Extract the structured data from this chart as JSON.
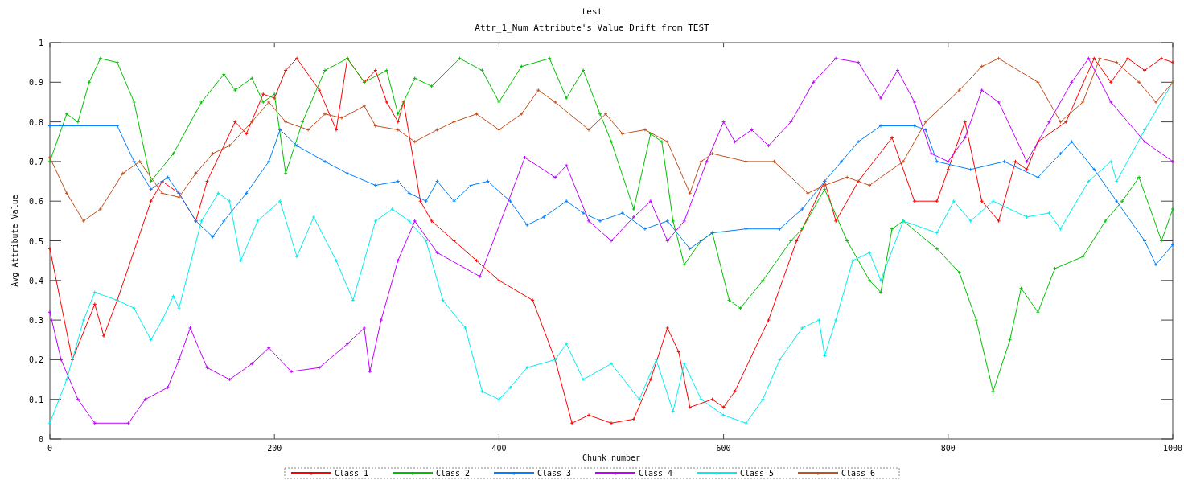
{
  "chart_data": {
    "type": "line",
    "title": "test",
    "subtitle": "Attr_1_Num Attribute's Value Drift from TEST",
    "xlabel": "Chunk number",
    "ylabel": "Avg Attribute Value",
    "xlim": [
      0,
      1000
    ],
    "xticks": [
      0,
      200,
      400,
      600,
      800,
      1000
    ],
    "ylim": [
      0,
      1
    ],
    "yticks": [
      0,
      0.1,
      0.2,
      0.3,
      0.4,
      0.5,
      0.6,
      0.7,
      0.8,
      0.9,
      1
    ],
    "grid": false,
    "legend": "bottom",
    "marker": "cross",
    "line_style": "solid",
    "series": [
      {
        "name": "Class_1",
        "color": "#ff0000",
        "x": [
          0,
          20,
          40,
          48,
          60,
          90,
          100,
          115,
          130,
          140,
          165,
          175,
          190,
          200,
          210,
          220,
          240,
          255,
          265,
          280,
          290,
          300,
          310,
          315,
          330,
          340,
          360,
          380,
          400,
          430,
          450,
          465,
          480,
          500,
          520,
          535,
          550,
          560,
          570,
          590,
          600,
          610,
          640,
          665,
          690,
          700,
          720,
          750,
          770,
          790,
          800,
          815,
          830,
          845,
          860,
          870,
          880,
          905,
          930,
          945,
          960,
          975,
          990,
          1000
        ],
        "values": [
          0.48,
          0.2,
          0.34,
          0.26,
          0.35,
          0.6,
          0.65,
          0.62,
          0.55,
          0.65,
          0.8,
          0.77,
          0.87,
          0.86,
          0.93,
          0.96,
          0.88,
          0.78,
          0.96,
          0.9,
          0.93,
          0.85,
          0.8,
          0.85,
          0.6,
          0.55,
          0.5,
          0.45,
          0.4,
          0.35,
          0.2,
          0.04,
          0.06,
          0.04,
          0.05,
          0.15,
          0.28,
          0.22,
          0.08,
          0.1,
          0.08,
          0.12,
          0.3,
          0.5,
          0.65,
          0.55,
          0.65,
          0.76,
          0.6,
          0.6,
          0.68,
          0.8,
          0.6,
          0.55,
          0.7,
          0.68,
          0.75,
          0.8,
          0.96,
          0.9,
          0.96,
          0.93,
          0.96,
          0.95
        ]
      },
      {
        "name": "Class_2",
        "color": "#00c000",
        "x": [
          0,
          15,
          25,
          35,
          45,
          60,
          75,
          90,
          110,
          135,
          155,
          165,
          180,
          190,
          200,
          210,
          225,
          245,
          265,
          280,
          300,
          310,
          325,
          340,
          365,
          385,
          400,
          420,
          445,
          460,
          475,
          490,
          500,
          520,
          535,
          545,
          555,
          565,
          580,
          590,
          605,
          615,
          635,
          660,
          670,
          690,
          710,
          730,
          740,
          750,
          760,
          790,
          810,
          825,
          840,
          855,
          865,
          880,
          895,
          920,
          940,
          955,
          970,
          990,
          1000
        ],
        "values": [
          0.7,
          0.82,
          0.8,
          0.9,
          0.96,
          0.95,
          0.85,
          0.65,
          0.72,
          0.85,
          0.92,
          0.88,
          0.91,
          0.85,
          0.87,
          0.67,
          0.8,
          0.93,
          0.96,
          0.9,
          0.93,
          0.82,
          0.91,
          0.89,
          0.96,
          0.93,
          0.85,
          0.94,
          0.96,
          0.86,
          0.93,
          0.82,
          0.75,
          0.58,
          0.77,
          0.75,
          0.55,
          0.44,
          0.5,
          0.52,
          0.35,
          0.33,
          0.4,
          0.5,
          0.53,
          0.63,
          0.5,
          0.4,
          0.37,
          0.53,
          0.55,
          0.48,
          0.42,
          0.3,
          0.12,
          0.25,
          0.38,
          0.32,
          0.43,
          0.46,
          0.55,
          0.6,
          0.66,
          0.5,
          0.58
        ]
      },
      {
        "name": "Class_3",
        "color": "#0080ff",
        "x": [
          0,
          60,
          75,
          90,
          105,
          115,
          130,
          145,
          155,
          175,
          195,
          205,
          220,
          245,
          265,
          290,
          310,
          320,
          335,
          345,
          360,
          375,
          390,
          410,
          425,
          440,
          460,
          475,
          490,
          510,
          530,
          550,
          570,
          590,
          620,
          650,
          670,
          690,
          705,
          720,
          740,
          770,
          780,
          790,
          820,
          850,
          880,
          900,
          910,
          930,
          950,
          975,
          985,
          1000
        ],
        "values": [
          0.79,
          0.79,
          0.7,
          0.63,
          0.66,
          0.62,
          0.55,
          0.51,
          0.55,
          0.62,
          0.7,
          0.78,
          0.74,
          0.7,
          0.67,
          0.64,
          0.65,
          0.62,
          0.6,
          0.65,
          0.6,
          0.64,
          0.65,
          0.6,
          0.54,
          0.56,
          0.6,
          0.57,
          0.55,
          0.57,
          0.53,
          0.55,
          0.48,
          0.52,
          0.53,
          0.53,
          0.58,
          0.65,
          0.7,
          0.75,
          0.79,
          0.79,
          0.78,
          0.7,
          0.68,
          0.7,
          0.66,
          0.72,
          0.75,
          0.68,
          0.6,
          0.5,
          0.44,
          0.49
        ]
      },
      {
        "name": "Class_4",
        "color": "#c000ff",
        "x": [
          0,
          10,
          25,
          40,
          70,
          85,
          105,
          115,
          125,
          140,
          160,
          180,
          195,
          215,
          240,
          265,
          280,
          285,
          295,
          310,
          325,
          345,
          383,
          423,
          450,
          460,
          480,
          500,
          520,
          535,
          550,
          565,
          585,
          600,
          610,
          625,
          640,
          660,
          680,
          700,
          720,
          740,
          755,
          770,
          785,
          800,
          815,
          830,
          845,
          870,
          890,
          910,
          925,
          945,
          975,
          1000
        ],
        "values": [
          0.32,
          0.2,
          0.1,
          0.04,
          0.04,
          0.1,
          0.13,
          0.2,
          0.28,
          0.18,
          0.15,
          0.19,
          0.23,
          0.17,
          0.18,
          0.24,
          0.28,
          0.17,
          0.3,
          0.45,
          0.55,
          0.47,
          0.41,
          0.71,
          0.66,
          0.69,
          0.55,
          0.5,
          0.56,
          0.6,
          0.5,
          0.55,
          0.7,
          0.8,
          0.75,
          0.78,
          0.74,
          0.8,
          0.9,
          0.96,
          0.95,
          0.86,
          0.93,
          0.85,
          0.72,
          0.7,
          0.76,
          0.88,
          0.85,
          0.7,
          0.8,
          0.9,
          0.96,
          0.85,
          0.75,
          0.7
        ]
      },
      {
        "name": "Class_5",
        "color": "#00eeee",
        "x": [
          0,
          15,
          30,
          40,
          60,
          75,
          90,
          100,
          110,
          115,
          135,
          150,
          160,
          170,
          185,
          205,
          220,
          235,
          255,
          270,
          290,
          305,
          320,
          335,
          350,
          370,
          385,
          400,
          410,
          425,
          450,
          460,
          475,
          500,
          525,
          540,
          555,
          565,
          580,
          600,
          620,
          635,
          650,
          670,
          685,
          690,
          700,
          715,
          730,
          740,
          760,
          790,
          805,
          820,
          840,
          870,
          890,
          900,
          925,
          945,
          950,
          975,
          1000
        ],
        "values": [
          0.04,
          0.15,
          0.3,
          0.37,
          0.35,
          0.33,
          0.25,
          0.3,
          0.36,
          0.33,
          0.55,
          0.62,
          0.6,
          0.45,
          0.55,
          0.6,
          0.46,
          0.56,
          0.45,
          0.35,
          0.55,
          0.58,
          0.55,
          0.5,
          0.35,
          0.28,
          0.12,
          0.1,
          0.13,
          0.18,
          0.2,
          0.24,
          0.15,
          0.19,
          0.1,
          0.2,
          0.07,
          0.19,
          0.1,
          0.06,
          0.04,
          0.1,
          0.2,
          0.28,
          0.3,
          0.21,
          0.3,
          0.45,
          0.47,
          0.4,
          0.55,
          0.52,
          0.6,
          0.55,
          0.6,
          0.56,
          0.57,
          0.53,
          0.65,
          0.7,
          0.65,
          0.78,
          0.9
        ]
      },
      {
        "name": "Class_6",
        "color": "#c0501c",
        "x": [
          0,
          15,
          30,
          45,
          65,
          80,
          100,
          115,
          130,
          145,
          160,
          180,
          195,
          210,
          230,
          245,
          260,
          280,
          290,
          310,
          325,
          345,
          360,
          380,
          400,
          420,
          435,
          450,
          480,
          495,
          510,
          530,
          550,
          570,
          580,
          590,
          620,
          645,
          675,
          690,
          710,
          730,
          760,
          780,
          810,
          830,
          845,
          880,
          900,
          920,
          935,
          950,
          970,
          985,
          1000
        ],
        "values": [
          0.71,
          0.62,
          0.55,
          0.58,
          0.67,
          0.7,
          0.62,
          0.61,
          0.67,
          0.72,
          0.74,
          0.8,
          0.85,
          0.8,
          0.78,
          0.82,
          0.81,
          0.84,
          0.79,
          0.78,
          0.75,
          0.78,
          0.8,
          0.82,
          0.78,
          0.82,
          0.88,
          0.85,
          0.78,
          0.82,
          0.77,
          0.78,
          0.75,
          0.62,
          0.7,
          0.72,
          0.7,
          0.7,
          0.62,
          0.64,
          0.66,
          0.64,
          0.7,
          0.8,
          0.88,
          0.94,
          0.96,
          0.9,
          0.8,
          0.85,
          0.96,
          0.95,
          0.9,
          0.85,
          0.9
        ]
      }
    ]
  }
}
